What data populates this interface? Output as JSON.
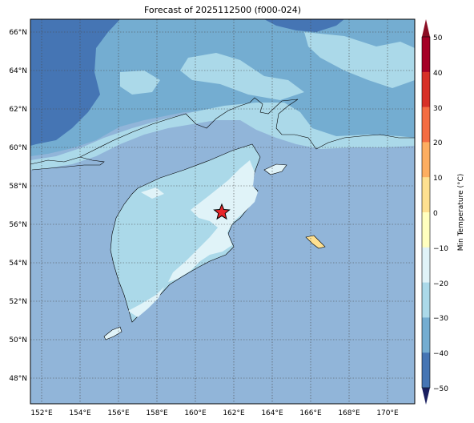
{
  "title": "Forecast of 2025112500 (f000-024)",
  "map": {
    "lat_labels": [
      "66°N",
      "64°N",
      "62°N",
      "60°N",
      "58°N",
      "56°N",
      "54°N",
      "52°N",
      "50°N",
      "48°N"
    ],
    "lon_labels": [
      "152°E",
      "154°E",
      "156°E",
      "158°E",
      "160°E",
      "162°E",
      "164°E",
      "166°E",
      "168°E",
      "170°E"
    ],
    "marker": {
      "type": "star",
      "color": "#e8262a",
      "lat": 56.6,
      "lon": 161.3
    }
  },
  "colorbar": {
    "label": "Min Temperature (°C)",
    "ticks": [
      "50",
      "40",
      "30",
      "20",
      "10",
      "0",
      "−10",
      "−20",
      "−30",
      "−40",
      "−50"
    ],
    "colors": [
      "#a50026",
      "#d73027",
      "#f46d43",
      "#fdae61",
      "#fee090",
      "#ffffbf",
      "#e0f3f8",
      "#abd9e9",
      "#74add1",
      "#4575b4",
      "#313695"
    ]
  },
  "fill_colors": {
    "ocean": "#91b5d9",
    "cold": "#4575b4",
    "cool": "#74add1",
    "mild": "#abd9e9",
    "near_zero": "#e0f3f8",
    "warm": "#fee090"
  }
}
